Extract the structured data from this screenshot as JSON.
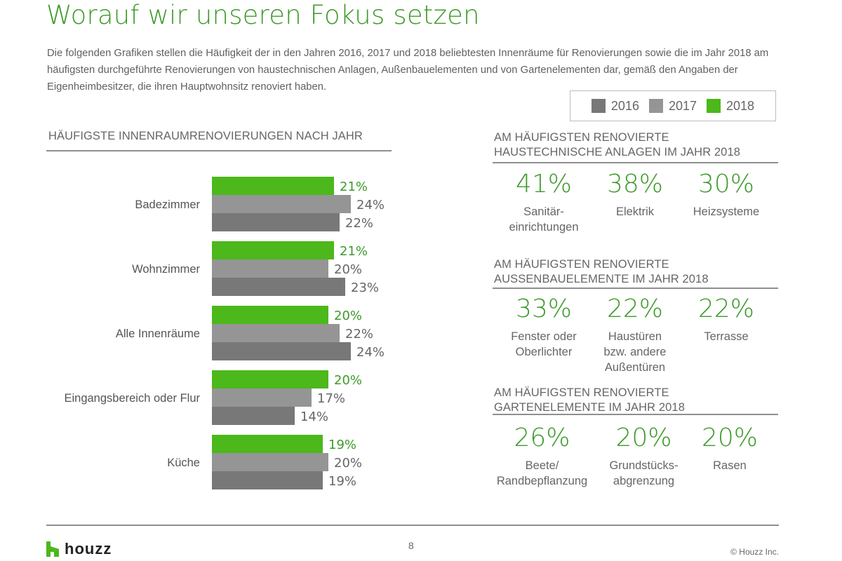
{
  "title": "Worauf wir unseren Fokus setzen",
  "intro": "Die folgenden Grafiken stellen die Häufigkeit der in den Jahren 2016, 2017 und 2018 beliebtesten Innenräume für Renovierungen sowie die im Jahr 2018 am häufigsten durchgeführte Renovierungen von haustechnischen Anlagen, Außenbauelementen und von Gartenelementen dar, gemäß den Angaben der Eigenheimbesitzer, die ihren Hauptwohnsitz renoviert haben.",
  "colors": {
    "green": "#4cb81b",
    "y2017": "#959595",
    "y2016": "#787878",
    "accent_text": "#3d9a2a"
  },
  "legend": [
    {
      "label": "2016",
      "color": "#787878"
    },
    {
      "label": "2017",
      "color": "#959595"
    },
    {
      "label": "2018",
      "color": "#4cb81b"
    }
  ],
  "chart_data": {
    "type": "bar",
    "orientation": "horizontal",
    "title": "HÄUFIGSTE INNENRAUMRENOVIERUNGEN NACH JAHR",
    "categories": [
      "Badezimmer",
      "Wohnzimmer",
      "Alle Innenräume",
      "Eingangsbereich oder Flur",
      "Küche"
    ],
    "series": [
      {
        "name": "2018",
        "color": "#4cb81b",
        "values": [
          21,
          21,
          20,
          20,
          19
        ]
      },
      {
        "name": "2017",
        "color": "#959595",
        "values": [
          24,
          20,
          22,
          17,
          20
        ]
      },
      {
        "name": "2016",
        "color": "#787878",
        "values": [
          22,
          23,
          24,
          14,
          19
        ]
      }
    ],
    "unit": "%",
    "xlim": [
      0,
      24
    ],
    "grid": false,
    "legend_position": "top-right"
  },
  "stat_sections": [
    {
      "heading": [
        "AM HÄUFIGSTEN RENOVIERTE",
        "HAUSTECHNISCHE ANLAGEN IM JAHR 2018"
      ],
      "items": [
        {
          "value": "41%",
          "label": "Sanitär-\neinrichtungen"
        },
        {
          "value": "38%",
          "label": "Elektrik"
        },
        {
          "value": "30%",
          "label": "Heizsysteme"
        }
      ]
    },
    {
      "heading": [
        "AM HÄUFIGSTEN RENOVIERTE",
        "AUSSENBAUELEMENTE IM JAHR 2018"
      ],
      "items": [
        {
          "value": "33%",
          "label": "Fenster oder\nOberlichter"
        },
        {
          "value": "22%",
          "label": "Haustüren\nbzw. andere\nAußentüren"
        },
        {
          "value": "22%",
          "label": "Terrasse"
        }
      ]
    },
    {
      "heading": [
        "AM HÄUFIGSTEN RENOVIERTE",
        "GARTENELEMENTE IM JAHR 2018"
      ],
      "items": [
        {
          "value": "26%",
          "label": "Beete/\nRandbepflanzung"
        },
        {
          "value": "20%",
          "label": "Grundstücks-\nabgrenzung"
        },
        {
          "value": "20%",
          "label": "Rasen"
        }
      ]
    }
  ],
  "footer": {
    "logo": "houzz",
    "page": "8",
    "copyright": "© Houzz Inc."
  }
}
